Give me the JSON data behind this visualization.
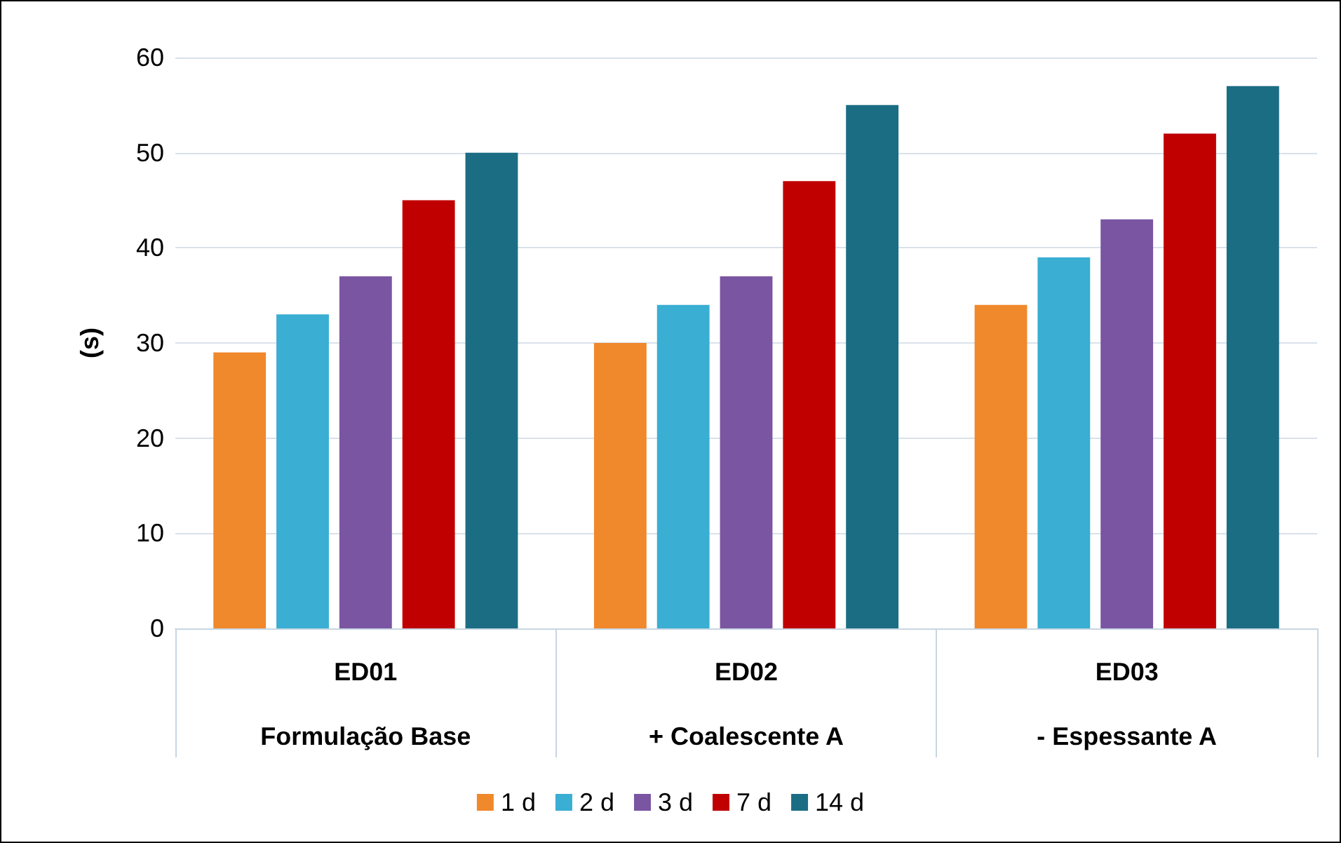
{
  "chart_data": {
    "type": "bar",
    "ylabel": "(s)",
    "categories": [
      "ED01\nFormulação Base",
      "ED02\n+ Coalescente A",
      "ED03\n- Espessante A"
    ],
    "series": [
      {
        "name": "1 d",
        "color": "#f0882c",
        "values": [
          29,
          30,
          34
        ]
      },
      {
        "name": "2 d",
        "color": "#3aaed3",
        "values": [
          33,
          34,
          39
        ]
      },
      {
        "name": "3 d",
        "color": "#7a55a2",
        "values": [
          37,
          37,
          43
        ]
      },
      {
        "name": "7 d",
        "color": "#c00000",
        "values": [
          45,
          47,
          52
        ]
      },
      {
        "name": "14 d",
        "color": "#1b6d84",
        "values": [
          50,
          55,
          57
        ]
      }
    ],
    "ylim": [
      0,
      60
    ],
    "yticks": [
      0,
      10,
      20,
      30,
      40,
      50,
      60
    ],
    "grid": "y",
    "legend": "bottom"
  }
}
